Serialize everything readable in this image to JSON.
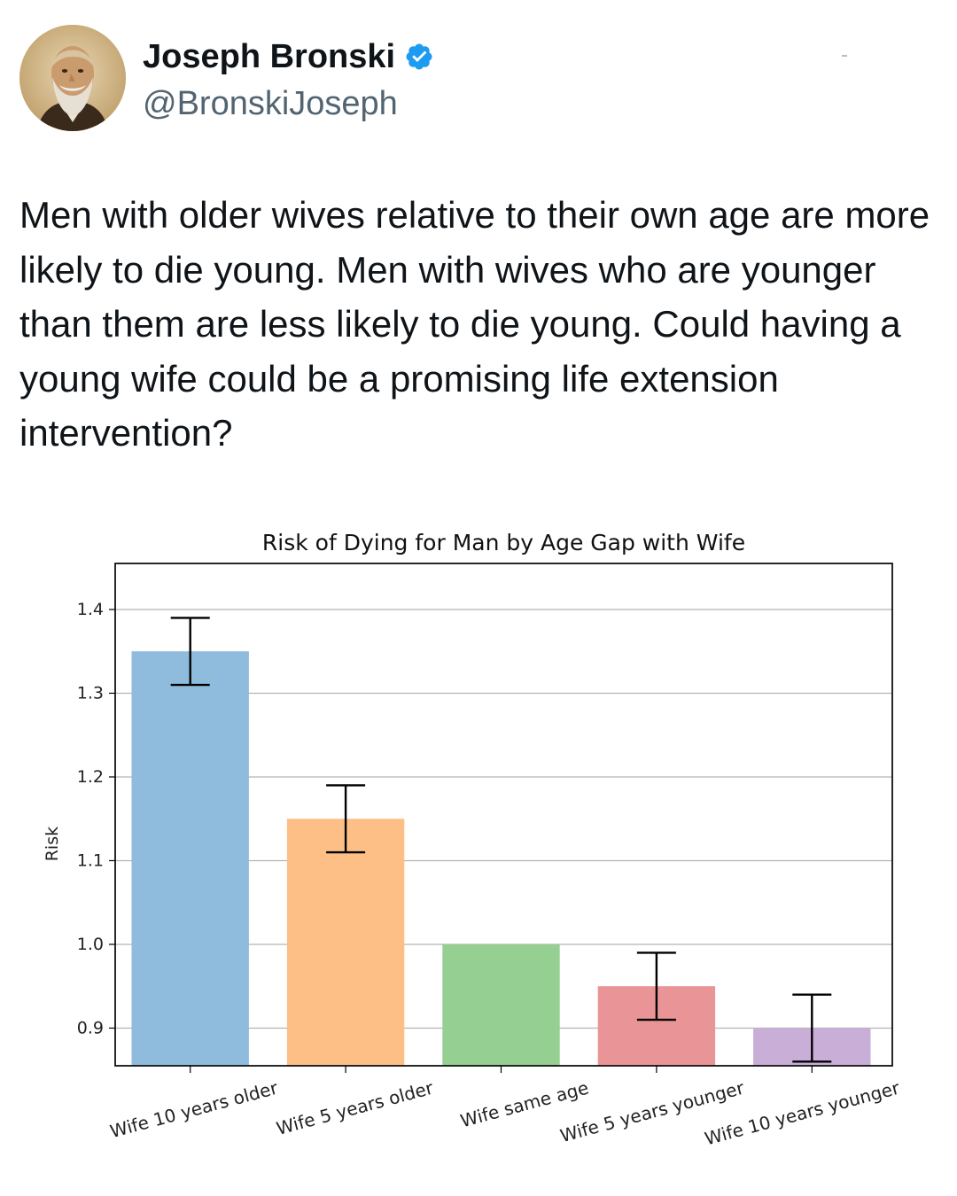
{
  "tweet": {
    "display_name": "Joseph Bronski",
    "handle": "@BronskiJoseph",
    "verified": true,
    "avatar_icon": "avatar-portrait",
    "verified_icon": "verified-badge-icon",
    "text": "Men with older wives relative to their own age are more likely to die young. Men with wives who are younger than them are less likely to die young. Could having a young wife could be a promising life extension intervention?"
  },
  "colors": {
    "text": "#0f1419",
    "secondary_text": "#536471",
    "verified_blue": "#1d9bf0",
    "grid": "#b3b3b3",
    "error_bar": "#000000"
  },
  "chart_data": {
    "type": "bar",
    "title": "Risk of Dying for Man by Age Gap with Wife",
    "xlabel": "",
    "ylabel": "Risk",
    "categories": [
      "Wife 10 years older",
      "Wife 5 years older",
      "Wife same age",
      "Wife 5 years younger",
      "Wife 10 years younger"
    ],
    "values": [
      1.35,
      1.15,
      1.0,
      0.95,
      0.9
    ],
    "error_low": [
      1.31,
      1.11,
      null,
      0.91,
      0.86
    ],
    "error_high": [
      1.39,
      1.19,
      null,
      0.99,
      0.94
    ],
    "colors": [
      "#8fbcdc",
      "#fdbf86",
      "#95cf92",
      "#e99496",
      "#c9aed8"
    ],
    "ylim": [
      0.855,
      1.455
    ],
    "yticks": [
      0.9,
      1.0,
      1.1,
      1.2,
      1.3,
      1.4
    ],
    "ytick_labels": [
      "0.9",
      "1.0",
      "1.1",
      "1.2",
      "1.3",
      "1.4"
    ],
    "grid": true,
    "legend": "none"
  }
}
